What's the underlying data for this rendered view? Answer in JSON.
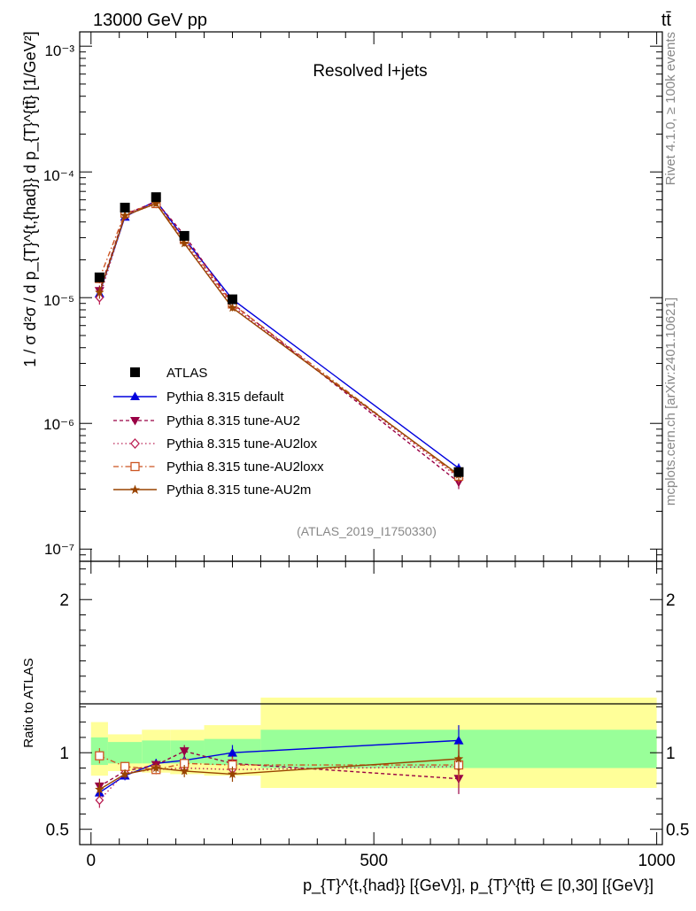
{
  "header": {
    "left": "13000 GeV pp",
    "right": "tt̄"
  },
  "side": {
    "rivet": "Rivet 4.1.0, ≥ 100k events",
    "mcplots": "mcplots.cern.ch [arXiv:2401.10621]"
  },
  "colors": {
    "atlas": "#000000",
    "default": "#0000dd",
    "au2": "#990044",
    "au2lox": "#bb2255",
    "au2loxx": "#cc5522",
    "au2m": "#994400",
    "band_inner": "#99ff99",
    "band_outer": "#ffff99"
  },
  "chart_data": [
    {
      "type": "line",
      "title": "Resolved l+jets",
      "watermark": "(ATLAS_2019_I1750330)",
      "ylabel": "1 / σ d²σ / d p_{T}^{t,{had}} d p_{T}^{tt̄} [1/GeV²]",
      "yscale": "log",
      "ylim": [
        8e-08,
        0.0013
      ],
      "xlim": [
        -20,
        1010
      ],
      "ytick_labels": [
        "10⁻³",
        "10⁻⁴",
        "10⁻⁵",
        "10⁻⁶",
        "10⁻⁷"
      ],
      "x": [
        15,
        60,
        115,
        165,
        250,
        650
      ],
      "data": {
        "name": "ATLAS",
        "values": [
          1.45e-05,
          5.2e-05,
          6.3e-05,
          3.1e-05,
          9.7e-06,
          4.1e-07
        ],
        "err": [
          1.2e-06,
          3e-06,
          3.5e-06,
          1.8e-06,
          6e-07,
          3e-08
        ]
      },
      "series": [
        {
          "key": "default",
          "name": "Pythia 8.315 default",
          "values": [
            1.08e-05,
            4.4e-05,
            5.9e-05,
            2.95e-05,
            9.7e-06,
            4.4e-07
          ],
          "err": [
            1.2e-06,
            2.5e-06,
            3e-06,
            1.5e-06,
            5e-07,
            4e-08
          ]
        },
        {
          "key": "au2",
          "name": "Pythia 8.315 tune-AU2",
          "values": [
            1.13e-05,
            4.6e-05,
            5.8e-05,
            3.15e-05,
            9e-06,
            3.4e-07
          ],
          "err": [
            1.2e-06,
            2.5e-06,
            3e-06,
            1.5e-06,
            5e-07,
            4e-08
          ]
        },
        {
          "key": "au2lox",
          "name": "Pythia 8.315 tune-AU2lox",
          "values": [
            1e-05,
            4.5e-05,
            5.6e-05,
            2.8e-05,
            8.6e-06,
            3.7e-07
          ],
          "err": [
            1.2e-06,
            2.5e-06,
            3e-06,
            1.5e-06,
            5e-07,
            4e-08
          ]
        },
        {
          "key": "au2loxx",
          "name": "Pythia 8.315 tune-AU2loxx",
          "values": [
            1.42e-05,
            4.7e-05,
            5.6e-05,
            2.9e-05,
            8.9e-06,
            3.8e-07
          ],
          "err": [
            1.2e-06,
            2.5e-06,
            3e-06,
            1.5e-06,
            5e-07,
            4e-08
          ]
        },
        {
          "key": "au2m",
          "name": "Pythia 8.315 tune-AU2m",
          "values": [
            1.1e-05,
            4.5e-05,
            5.6e-05,
            2.7e-05,
            8.3e-06,
            3.9e-07
          ],
          "err": [
            1.2e-06,
            2.5e-06,
            3e-06,
            1.5e-06,
            5e-07,
            4e-08
          ]
        }
      ]
    },
    {
      "type": "line",
      "ylabel": "Ratio to ATLAS",
      "ylim": [
        0.4,
        2.25
      ],
      "xlim": [
        -20,
        1010
      ],
      "xlabel": "p_{T}^{t,{had}} [{GeV}], p_{T}^{tt̄} ∈ [0,30] [{GeV}]",
      "ytick_values": [
        0.5,
        1,
        2
      ],
      "ytick_labels": [
        "0.5",
        "1",
        "2"
      ],
      "xtick_values": [
        0,
        500,
        1000
      ],
      "xtick_labels": [
        "0",
        "500",
        "1000"
      ],
      "bands": [
        {
          "x0": 0,
          "x1": 30,
          "inner": [
            0.92,
            1.1
          ],
          "outer": [
            0.85,
            1.2
          ]
        },
        {
          "x0": 30,
          "x1": 90,
          "inner": [
            0.93,
            1.07
          ],
          "outer": [
            0.88,
            1.12
          ]
        },
        {
          "x0": 90,
          "x1": 140,
          "inner": [
            0.93,
            1.08
          ],
          "outer": [
            0.87,
            1.15
          ]
        },
        {
          "x0": 140,
          "x1": 200,
          "inner": [
            0.93,
            1.08
          ],
          "outer": [
            0.86,
            1.15
          ]
        },
        {
          "x0": 200,
          "x1": 300,
          "inner": [
            0.92,
            1.09
          ],
          "outer": [
            0.85,
            1.18
          ]
        },
        {
          "x0": 300,
          "x1": 1000,
          "inner": [
            0.9,
            1.15
          ],
          "outer": [
            0.77,
            1.36
          ]
        }
      ],
      "series": [
        {
          "key": "default",
          "values": [
            0.74,
            0.85,
            0.93,
            0.95,
            1.0,
            1.08
          ],
          "err": [
            0.05,
            0.03,
            0.03,
            0.04,
            0.05,
            0.1
          ]
        },
        {
          "key": "au2",
          "values": [
            0.78,
            0.88,
            0.92,
            1.01,
            0.93,
            0.83
          ],
          "err": [
            0.05,
            0.03,
            0.03,
            0.04,
            0.05,
            0.1
          ]
        },
        {
          "key": "au2lox",
          "values": [
            0.69,
            0.87,
            0.89,
            0.9,
            0.89,
            0.91
          ],
          "err": [
            0.05,
            0.03,
            0.03,
            0.04,
            0.05,
            0.1
          ]
        },
        {
          "key": "au2loxx",
          "values": [
            0.98,
            0.91,
            0.89,
            0.93,
            0.92,
            0.92
          ],
          "err": [
            0.05,
            0.03,
            0.03,
            0.04,
            0.05,
            0.1
          ]
        },
        {
          "key": "au2m",
          "values": [
            0.76,
            0.86,
            0.9,
            0.88,
            0.86,
            0.96
          ],
          "err": [
            0.05,
            0.03,
            0.03,
            0.04,
            0.05,
            0.1
          ]
        }
      ]
    }
  ]
}
